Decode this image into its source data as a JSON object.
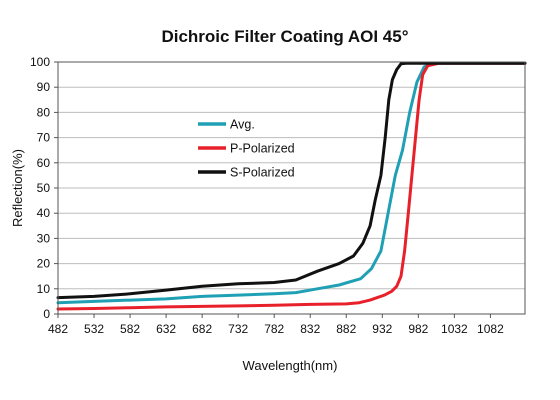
{
  "chart_data": {
    "type": "line",
    "title": "Dichroic Filter Coating AOI 45°",
    "xlabel": "Wavelength(nm)",
    "ylabel": "Reflection(%)",
    "xlim": [
      482,
      1130
    ],
    "ylim": [
      0,
      100
    ],
    "xticks": [
      482,
      532,
      582,
      632,
      682,
      732,
      782,
      832,
      882,
      932,
      982,
      1032,
      1082
    ],
    "yticks": [
      0,
      10,
      20,
      30,
      40,
      50,
      60,
      70,
      80,
      90,
      100
    ],
    "grid": "horizontal",
    "legend_position": "upper-left",
    "series": [
      {
        "name": "Avg.",
        "color": "#1fa0b4",
        "x": [
          482,
          532,
          582,
          632,
          682,
          732,
          782,
          812,
          842,
          872,
          902,
          917,
          930,
          940,
          950,
          960,
          970,
          980,
          990,
          1000,
          1032,
          1082,
          1130
        ],
        "y": [
          4.5,
          5,
          5.5,
          6,
          7,
          7.5,
          8,
          8.5,
          10,
          11.5,
          14,
          18,
          25,
          40,
          55,
          65,
          80,
          92,
          98,
          99.5,
          99.5,
          99.5,
          99.5
        ]
      },
      {
        "name": "P-Polarized",
        "color": "#e8202a",
        "x": [
          482,
          532,
          582,
          632,
          682,
          732,
          782,
          832,
          882,
          900,
          915,
          925,
          935,
          945,
          952,
          958,
          963,
          968,
          973,
          978,
          983,
          988,
          995,
          1010,
          1032,
          1082,
          1130
        ],
        "y": [
          2,
          2.2,
          2.5,
          2.8,
          3,
          3.2,
          3.5,
          3.8,
          4,
          4.5,
          5.5,
          6.5,
          7.5,
          9,
          11,
          15,
          25,
          40,
          55,
          70,
          85,
          95,
          98.5,
          99.5,
          99.5,
          99.5,
          99.5
        ]
      },
      {
        "name": "S-Polarized",
        "color": "#111111",
        "x": [
          482,
          532,
          582,
          632,
          682,
          732,
          782,
          812,
          842,
          872,
          892,
          905,
          915,
          922,
          930,
          936,
          941,
          946,
          952,
          958,
          965,
          975,
          990,
          1032,
          1082,
          1130
        ],
        "y": [
          6.5,
          7,
          8,
          9.5,
          11,
          12,
          12.5,
          13.5,
          17,
          20,
          23,
          28,
          35,
          45,
          55,
          70,
          85,
          93,
          97,
          99.3,
          99.5,
          99.5,
          99.5,
          99.5,
          99.5,
          99.5
        ]
      }
    ]
  }
}
